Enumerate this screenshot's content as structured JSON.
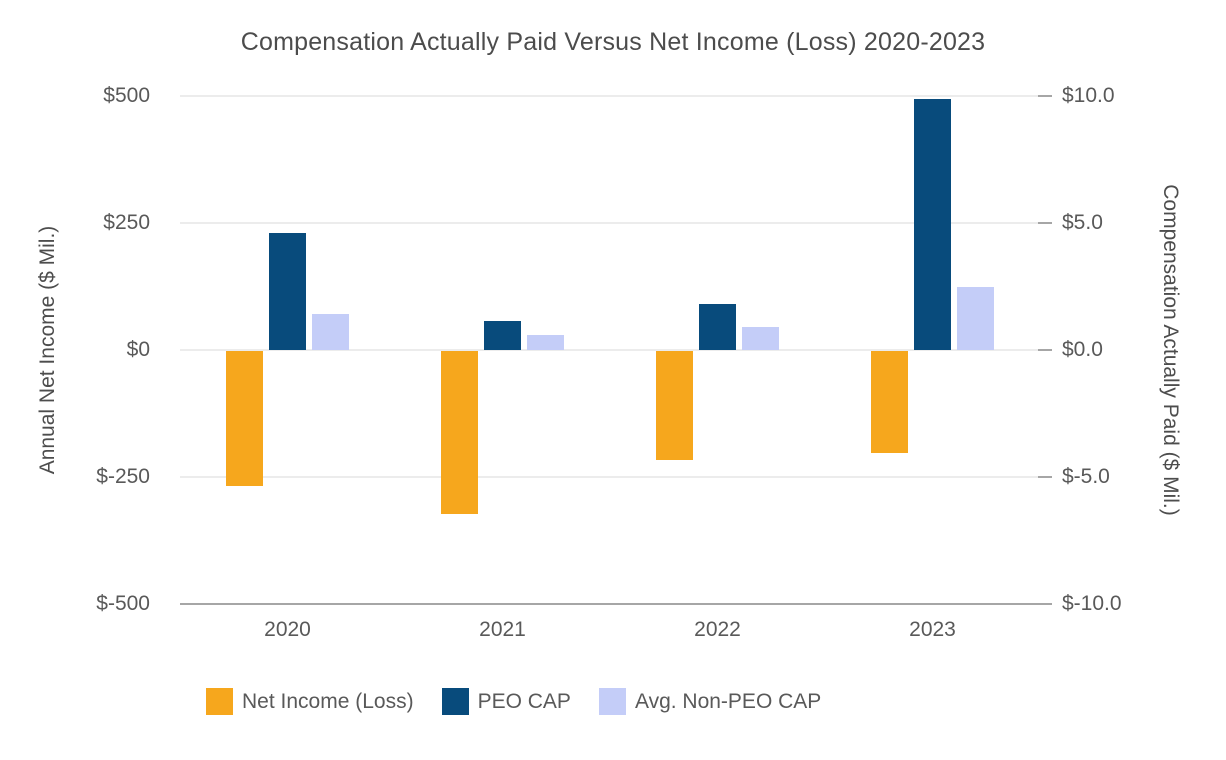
{
  "chart_data": {
    "type": "bar",
    "title": "Compensation Actually Paid Versus Net Income (Loss) 2020-2023",
    "categories": [
      "2020",
      "2021",
      "2022",
      "2023"
    ],
    "series": [
      {
        "name": "Net Income (Loss)",
        "axis": "left",
        "color": "#F6A71D",
        "values": [
          -265,
          -320,
          -215,
          -200
        ]
      },
      {
        "name": "PEO CAP",
        "axis": "right",
        "color": "#084B7C",
        "values": [
          4.6,
          1.15,
          1.8,
          9.9
        ]
      },
      {
        "name": "Avg. Non-PEO CAP",
        "axis": "right",
        "color": "#C4CDF8",
        "values": [
          1.4,
          0.6,
          0.9,
          2.5
        ]
      }
    ],
    "left_axis": {
      "label": "Annual Net Income ($ Mil.)",
      "ticks": [
        "$500",
        "$250",
        "$0",
        "$-250",
        "$-500"
      ],
      "range": [
        -500,
        500
      ]
    },
    "right_axis": {
      "label": "Compensation Actually Paid ($ Mil.)",
      "ticks": [
        "$10.0",
        "$5.0",
        "$0.0",
        "$-5.0",
        "$-10.0"
      ],
      "range": [
        -10,
        10
      ]
    },
    "legend_position": "bottom",
    "grid": "horizontal"
  },
  "colors": {
    "title_text": "#4c4c4c",
    "tick_text": "#595959",
    "axis_line": "#a6a6a6",
    "gridline": "#ececec",
    "background": "#ffffff"
  }
}
